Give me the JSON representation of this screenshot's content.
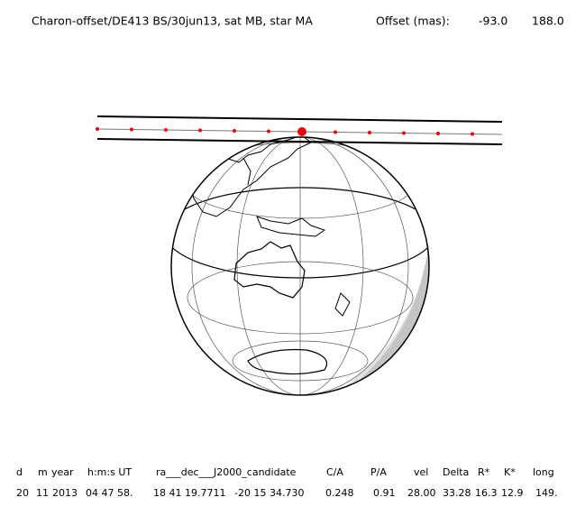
{
  "header": {
    "title": "Charon-offset/DE413 BS/30jun13, sat MB, star MA",
    "offset_label": "Offset (mas):",
    "offset_values": [
      "-93.0",
      "188.0"
    ]
  },
  "table": {
    "columns": [
      "d",
      "m",
      "year",
      "h:m:s UT",
      "ra___dec___J2000_candidate",
      "C/A",
      "P/A",
      "vel",
      "Delta",
      "R*",
      "K*",
      "long"
    ],
    "row": [
      "20",
      "11",
      "2013",
      "04 47 58.",
      "18 41 19.7711",
      "-20 15 34.730",
      "0.248",
      "0.91",
      "28.00",
      "33.28",
      "16.3",
      "12.9",
      "149."
    ]
  }
}
